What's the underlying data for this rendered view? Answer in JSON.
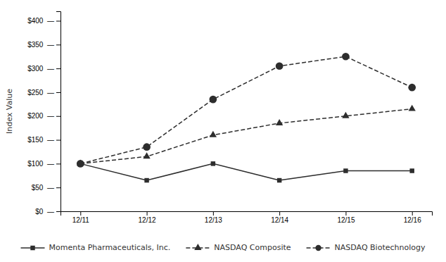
{
  "chart_data": {
    "type": "line",
    "categories": [
      "12/11",
      "12/12",
      "12/13",
      "12/14",
      "12/15",
      "12/16"
    ],
    "series": [
      {
        "name": "Momenta Pharmaceuticals, Inc.",
        "color": "#2d2d2d",
        "marker": "square",
        "line_style": "solid",
        "values": [
          100,
          65,
          100,
          65,
          85,
          85
        ]
      },
      {
        "name": "NASDAQ Composite",
        "color": "#2d2d2d",
        "marker": "triangle",
        "line_style": "dashed",
        "values": [
          100,
          115,
          160,
          185,
          200,
          215
        ]
      },
      {
        "name": "NASDAQ Biotechnology",
        "color": "#2d2d2d",
        "marker": "circle",
        "line_style": "dashed",
        "values": [
          100,
          135,
          235,
          305,
          325,
          260
        ]
      }
    ],
    "y_label": "Index Value",
    "ylim": [
      0,
      420
    ],
    "yticks": [
      {
        "value": 0,
        "label": "$0  —"
      },
      {
        "value": 50,
        "label": "$50  —"
      },
      {
        "value": 100,
        "label": "$100  —"
      },
      {
        "value": 150,
        "label": "$150  —"
      },
      {
        "value": 200,
        "label": "$200  —"
      },
      {
        "value": 250,
        "label": "$250  —"
      },
      {
        "value": 300,
        "label": "$300  —"
      },
      {
        "value": 350,
        "label": "$350  —"
      },
      {
        "value": 400,
        "label": "$400  —"
      }
    ],
    "grid": false,
    "legend": "bottom"
  }
}
